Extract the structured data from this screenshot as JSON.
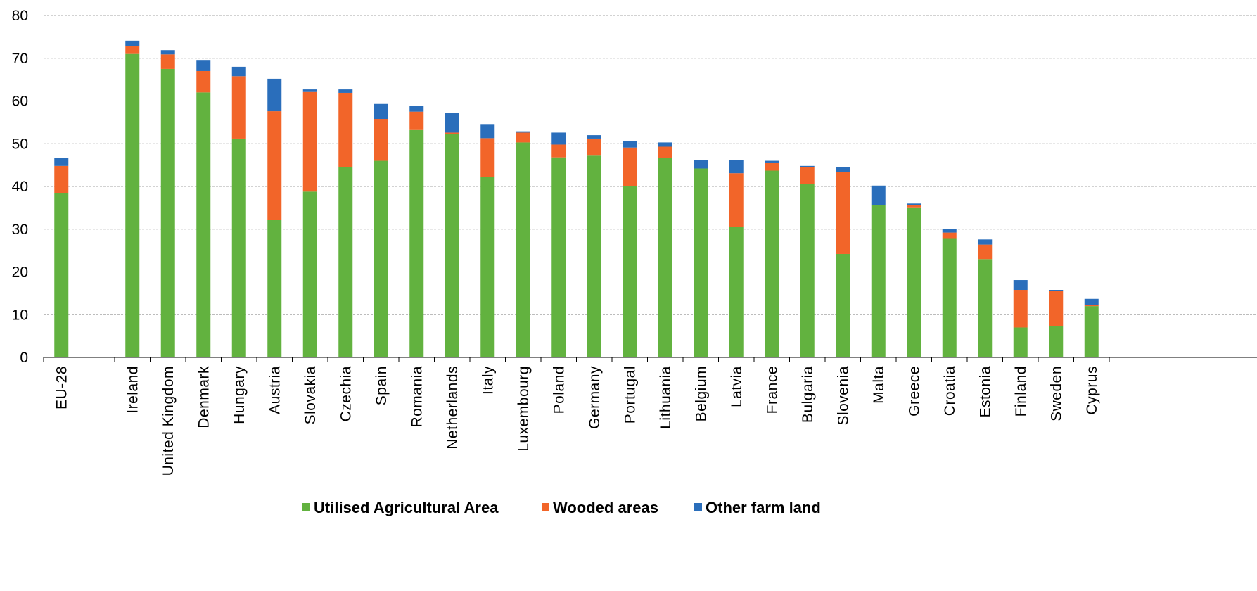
{
  "chart_data": {
    "type": "bar",
    "stacked": true,
    "title": "",
    "xlabel": "",
    "ylabel": "",
    "ylim": [
      0,
      80
    ],
    "yticks": [
      0,
      10,
      20,
      30,
      40,
      50,
      60,
      70,
      80
    ],
    "grid": true,
    "legend_position": "bottom-center",
    "categories": [
      "EU-28",
      "",
      "Ireland",
      "United Kingdom",
      "Denmark",
      "Hungary",
      "Austria",
      "Slovakia",
      "Czechia",
      "Spain",
      "Romania",
      "Netherlands",
      "Italy",
      "Luxembourg",
      "Poland",
      "Germany",
      "Portugal",
      "Lithuania",
      "Belgium",
      "Latvia",
      "France",
      "Bulgaria",
      "Slovenia",
      "Malta",
      "Greece",
      "Croatia",
      "Estonia",
      "Finland",
      "Sweden",
      "Cyprus"
    ],
    "series": [
      {
        "name": "Utilised Agricultural Area",
        "color": "#62b23f",
        "values": [
          38.5,
          null,
          71.0,
          67.5,
          62.0,
          51.2,
          32.2,
          38.8,
          44.6,
          46.0,
          53.2,
          52.3,
          42.3,
          50.3,
          46.8,
          47.2,
          40.0,
          46.6,
          44.2,
          30.5,
          43.7,
          40.5,
          24.2,
          35.6,
          35.1,
          27.9,
          23.0,
          7.0,
          7.4,
          12.0
        ]
      },
      {
        "name": "Wooded areas",
        "color": "#f26529",
        "values": [
          6.3,
          null,
          1.8,
          3.4,
          5.0,
          14.6,
          25.4,
          23.3,
          17.3,
          9.8,
          4.3,
          0.3,
          9.0,
          2.3,
          3.0,
          4.0,
          9.1,
          2.7,
          0.0,
          12.6,
          1.9,
          4.0,
          19.2,
          0.0,
          0.5,
          1.3,
          3.4,
          8.8,
          8.1,
          0.3
        ]
      },
      {
        "name": "Other farm land",
        "color": "#2a6ebb",
        "values": [
          1.8,
          null,
          1.3,
          1.0,
          2.6,
          2.2,
          7.6,
          0.6,
          0.8,
          3.5,
          1.4,
          4.6,
          3.3,
          0.3,
          2.8,
          0.8,
          1.6,
          1.0,
          2.0,
          3.1,
          0.4,
          0.3,
          1.1,
          4.6,
          0.4,
          0.8,
          1.2,
          2.3,
          0.3,
          1.4
        ]
      }
    ]
  }
}
